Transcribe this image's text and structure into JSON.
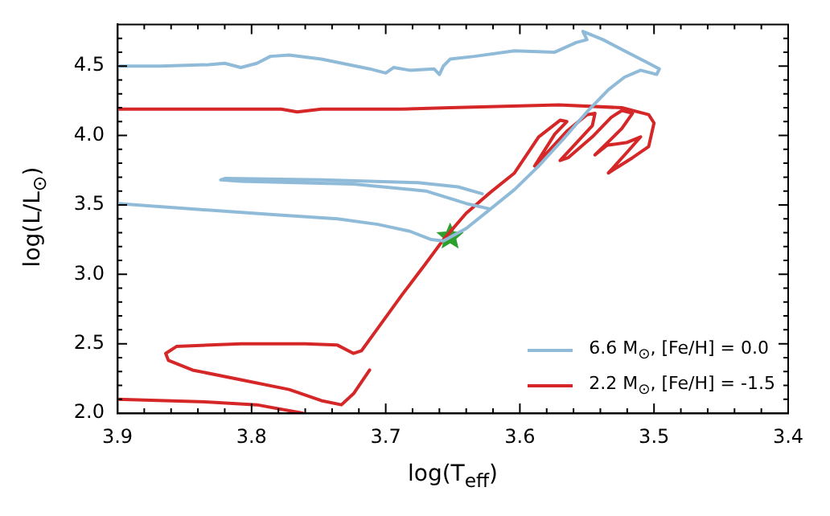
{
  "chart_data": {
    "type": "line",
    "xlabel": "log(T$_{eff}$)",
    "ylabel": "log(L/L$_{⊙}$)",
    "xlim": [
      3.9,
      3.4
    ],
    "ylim": [
      2.0,
      4.8
    ],
    "xticks": [
      3.9,
      {
        "value": 3.88,
        "label": null
      },
      {
        "value": 3.86,
        "label": null
      },
      {
        "value": 3.84,
        "label": null
      },
      {
        "value": 3.82,
        "label": null
      },
      3.8,
      {
        "value": 3.78,
        "label": null
      },
      {
        "value": 3.76,
        "label": null
      },
      {
        "value": 3.74,
        "label": null
      },
      {
        "value": 3.72,
        "label": null
      },
      3.7,
      {
        "value": 3.68,
        "label": null
      },
      {
        "value": 3.66,
        "label": null
      },
      {
        "value": 3.64,
        "label": null
      },
      {
        "value": 3.62,
        "label": null
      },
      3.6,
      {
        "value": 3.58,
        "label": null
      },
      {
        "value": 3.56,
        "label": null
      },
      {
        "value": 3.54,
        "label": null
      },
      {
        "value": 3.52,
        "label": null
      },
      3.5,
      {
        "value": 3.48,
        "label": null
      },
      {
        "value": 3.46,
        "label": null
      },
      {
        "value": 3.44,
        "label": null
      },
      {
        "value": 3.42,
        "label": null
      },
      3.4
    ],
    "yticks": [
      {
        "value": 2.0,
        "label": "2.0"
      },
      {
        "value": 2.1,
        "label": null
      },
      {
        "value": 2.2,
        "label": null
      },
      {
        "value": 2.3,
        "label": null
      },
      {
        "value": 2.4,
        "label": null
      },
      2.5,
      {
        "value": 2.6,
        "label": null
      },
      {
        "value": 2.7,
        "label": null
      },
      {
        "value": 2.8,
        "label": null
      },
      {
        "value": 2.9,
        "label": null
      },
      {
        "value": 3.0,
        "label": "3.0"
      },
      {
        "value": 3.1,
        "label": null
      },
      {
        "value": 3.2,
        "label": null
      },
      {
        "value": 3.3,
        "label": null
      },
      {
        "value": 3.4,
        "label": null
      },
      3.5,
      {
        "value": 3.6,
        "label": null
      },
      {
        "value": 3.7,
        "label": null
      },
      {
        "value": 3.8,
        "label": null
      },
      {
        "value": 3.9,
        "label": null
      },
      {
        "value": 4.0,
        "label": "4.0"
      },
      {
        "value": 4.1,
        "label": null
      },
      {
        "value": 4.2,
        "label": null
      },
      {
        "value": 4.3,
        "label": null
      },
      {
        "value": 4.4,
        "label": null
      },
      4.5,
      {
        "value": 4.6,
        "label": null
      },
      {
        "value": 4.7,
        "label": null
      }
    ],
    "legend": "bottom right",
    "series": [
      {
        "name": "6.6 M$_{⊙}$, [Fe/H] = 0.0",
        "color": "#8fbbd9",
        "x": [
          3.9,
          3.844,
          3.784,
          3.736,
          3.706,
          3.682,
          3.666,
          3.657,
          3.64,
          3.622,
          3.604,
          3.586,
          3.568,
          3.55,
          3.534,
          3.522,
          3.51,
          3.498,
          3.496,
          3.506,
          3.52,
          3.538,
          3.553,
          3.55,
          3.558,
          3.574,
          3.604,
          3.634,
          3.652,
          3.657,
          3.66,
          3.664,
          3.682,
          3.694,
          3.7,
          3.712,
          3.748,
          3.772,
          3.786,
          3.796,
          3.808,
          3.82,
          3.832,
          3.868,
          3.9,
          null,
          3.628,
          3.646,
          3.676,
          3.748,
          3.82,
          3.823,
          3.808,
          3.724,
          3.67,
          3.64,
          3.622
        ],
        "values": [
          3.51,
          3.47,
          3.43,
          3.4,
          3.36,
          3.31,
          3.25,
          3.24,
          3.33,
          3.47,
          3.61,
          3.78,
          3.97,
          4.17,
          4.33,
          4.42,
          4.47,
          4.44,
          4.48,
          4.53,
          4.6,
          4.69,
          4.75,
          4.69,
          4.67,
          4.6,
          4.61,
          4.57,
          4.55,
          4.5,
          4.44,
          4.48,
          4.47,
          4.49,
          4.45,
          4.48,
          4.55,
          4.58,
          4.57,
          4.52,
          4.49,
          4.52,
          4.51,
          4.5,
          4.5,
          null,
          3.58,
          3.63,
          3.66,
          3.68,
          3.69,
          3.68,
          3.67,
          3.65,
          3.6,
          3.51,
          3.47
        ]
      },
      {
        "name": "2.2 M$_{⊙}$, [Fe/H] = -1.5",
        "color": "#d62728",
        "x": [
          3.712,
          3.724,
          3.733,
          3.748,
          3.772,
          3.808,
          3.844,
          3.862,
          3.864,
          3.856,
          3.808,
          3.76,
          3.736,
          3.724,
          3.718,
          3.706,
          3.688,
          3.67,
          3.657,
          3.64,
          3.622,
          3.604,
          3.586,
          3.57,
          3.565,
          3.574,
          3.589,
          3.585,
          3.565,
          3.55,
          3.544,
          3.546,
          3.57,
          3.564,
          3.546,
          3.532,
          3.524,
          3.516,
          3.524,
          3.544,
          3.535,
          3.52,
          3.51,
          3.52,
          3.534,
          3.516,
          3.504,
          3.5,
          3.504,
          3.524,
          3.571,
          3.652,
          3.688,
          3.748,
          3.766,
          3.778,
          3.9,
          null,
          3.9,
          3.832,
          3.796,
          3.762
        ],
        "values": [
          2.31,
          2.14,
          2.06,
          2.09,
          2.17,
          2.24,
          2.31,
          2.38,
          2.43,
          2.48,
          2.5,
          2.5,
          2.49,
          2.43,
          2.45,
          2.61,
          2.85,
          3.08,
          3.25,
          3.44,
          3.59,
          3.73,
          3.99,
          4.11,
          4.1,
          4.01,
          3.78,
          3.82,
          4.03,
          4.15,
          4.16,
          4.07,
          3.82,
          3.84,
          3.99,
          4.13,
          4.18,
          4.16,
          4.05,
          3.86,
          3.93,
          3.95,
          3.99,
          3.88,
          3.73,
          3.84,
          3.92,
          4.09,
          4.15,
          4.2,
          4.22,
          4.2,
          4.19,
          4.19,
          4.17,
          4.19,
          4.19,
          null,
          2.1,
          2.08,
          2.06,
          2.0
        ]
      },
      {
        "type": "scatter",
        "color": "#2ca02c",
        "marker": "star",
        "x": [
          3.652
        ],
        "values": [
          3.27
        ]
      }
    ]
  }
}
